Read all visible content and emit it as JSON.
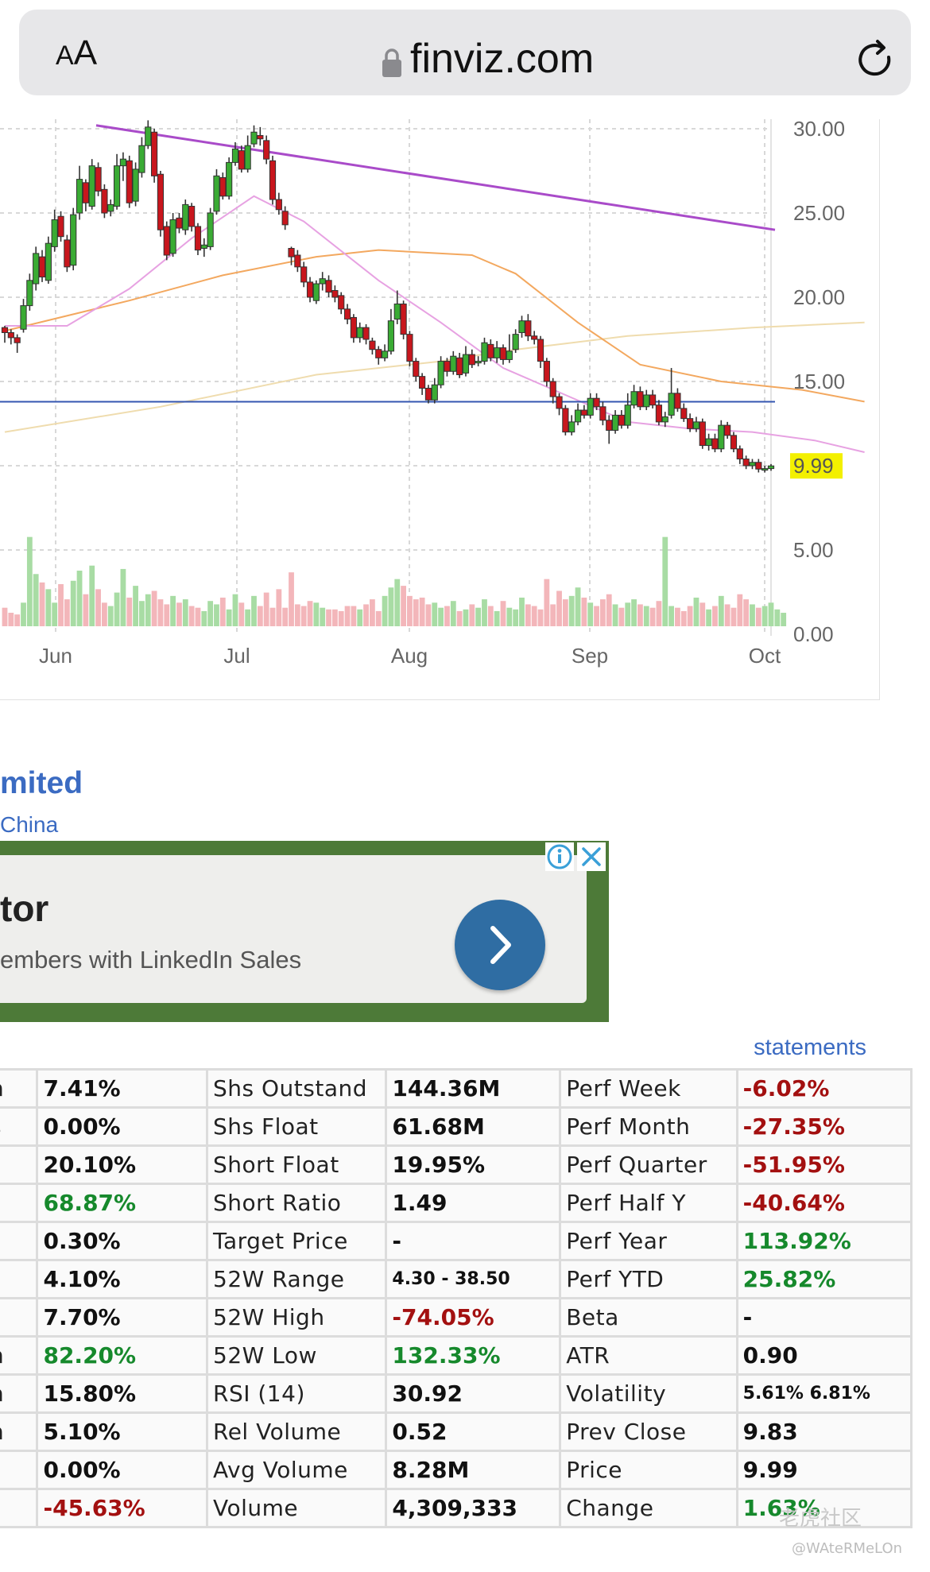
{
  "browser": {
    "text_size_label_small": "A",
    "text_size_label_large": "A",
    "domain": "finviz.com"
  },
  "chart_data": {
    "type": "candlestick",
    "y_ticks": [
      "30.00",
      "25.00",
      "20.00",
      "15.00",
      "5.00",
      "0.00"
    ],
    "x_ticks": [
      "Jun",
      "Jul",
      "Aug",
      "Sep",
      "Oct"
    ],
    "last_price_label": "9.99",
    "ylim": [
      0,
      30
    ],
    "colors": {
      "up": "#3aab34",
      "down": "#c8161d",
      "volume_up": "#a8dca4",
      "volume_down": "#f3b6ba",
      "trend": "#a94bc9",
      "ma20": "#e7a2e2",
      "ma50": "#f3a85f",
      "ma200": "#efdcae",
      "level": "#3456b0",
      "price_label_bg": "#f3f000"
    },
    "trendline": [
      [
        0,
        30.2
      ],
      [
        138,
        24.0
      ]
    ],
    "horizontal_level": 13.8,
    "ma20": [
      [
        0,
        18.3
      ],
      [
        10,
        18.3
      ],
      [
        20,
        20.5
      ],
      [
        30,
        23.5
      ],
      [
        40,
        26.0
      ],
      [
        48,
        24.5
      ],
      [
        60,
        21.0
      ],
      [
        70,
        18.5
      ],
      [
        80,
        15.8
      ],
      [
        90,
        14.2
      ],
      [
        100,
        12.6
      ],
      [
        110,
        12.2
      ],
      [
        120,
        12.0
      ],
      [
        130,
        11.5
      ],
      [
        138,
        10.8
      ]
    ],
    "ma50": [
      [
        0,
        18.0
      ],
      [
        20,
        19.8
      ],
      [
        35,
        21.3
      ],
      [
        50,
        22.4
      ],
      [
        60,
        22.8
      ],
      [
        75,
        22.5
      ],
      [
        82,
        21.4
      ],
      [
        92,
        18.5
      ],
      [
        102,
        16.0
      ],
      [
        115,
        15.0
      ],
      [
        128,
        14.5
      ],
      [
        138,
        13.8
      ]
    ],
    "ma200": [
      [
        0,
        12.0
      ],
      [
        25,
        13.5
      ],
      [
        50,
        15.4
      ],
      [
        70,
        16.2
      ],
      [
        80,
        16.8
      ],
      [
        100,
        17.7
      ],
      [
        120,
        18.2
      ],
      [
        138,
        18.5
      ]
    ],
    "candles": [
      [
        18.2,
        17.9,
        18.3,
        17.3
      ],
      [
        17.9,
        17.6,
        18.1,
        17.2
      ],
      [
        17.6,
        17.3,
        17.8,
        16.7
      ],
      [
        18.1,
        19.5,
        19.9,
        17.9
      ],
      [
        19.5,
        21.0,
        21.4,
        19.2
      ],
      [
        20.8,
        22.6,
        23.0,
        20.4
      ],
      [
        22.4,
        21.2,
        22.8,
        20.9
      ],
      [
        21.0,
        23.2,
        23.6,
        20.8
      ],
      [
        23.0,
        24.6,
        25.2,
        22.7
      ],
      [
        24.8,
        23.6,
        25.1,
        23.3
      ],
      [
        23.4,
        21.8,
        23.7,
        21.5
      ],
      [
        21.9,
        24.9,
        25.3,
        21.6
      ],
      [
        25.0,
        27.0,
        27.8,
        24.6
      ],
      [
        26.8,
        25.6,
        27.0,
        25.1
      ],
      [
        25.4,
        27.8,
        28.2,
        25.2
      ],
      [
        27.7,
        26.3,
        28.0,
        26.0
      ],
      [
        26.4,
        25.0,
        26.7,
        24.7
      ],
      [
        25.1,
        25.5,
        25.8,
        24.8
      ],
      [
        25.4,
        27.8,
        28.5,
        25.2
      ],
      [
        27.8,
        28.2,
        28.6,
        26.9
      ],
      [
        28.1,
        25.6,
        28.4,
        25.3
      ],
      [
        25.7,
        27.6,
        28.0,
        25.4
      ],
      [
        27.4,
        29.0,
        29.5,
        27.1
      ],
      [
        29.0,
        30.1,
        30.5,
        28.8
      ],
      [
        29.8,
        27.2,
        30.0,
        26.8
      ],
      [
        27.3,
        24.0,
        27.5,
        23.6
      ],
      [
        24.2,
        22.5,
        24.5,
        22.2
      ],
      [
        22.6,
        24.6,
        25.0,
        22.4
      ],
      [
        24.7,
        24.1,
        25.0,
        23.8
      ],
      [
        24.0,
        25.5,
        25.8,
        23.7
      ],
      [
        25.4,
        24.2,
        25.6,
        23.9
      ],
      [
        24.2,
        22.8,
        24.4,
        22.5
      ],
      [
        22.9,
        23.1,
        23.5,
        22.4
      ],
      [
        23.0,
        25.0,
        25.3,
        22.8
      ],
      [
        25.1,
        27.2,
        27.6,
        24.9
      ],
      [
        27.1,
        26.0,
        27.4,
        25.8
      ],
      [
        26.0,
        28.0,
        28.3,
        25.8
      ],
      [
        28.0,
        28.8,
        29.2,
        27.8
      ],
      [
        28.7,
        27.6,
        29.0,
        27.4
      ],
      [
        27.6,
        29.0,
        29.6,
        27.4
      ],
      [
        29.1,
        29.8,
        30.2,
        28.9
      ],
      [
        29.6,
        29.4,
        30.1,
        29.0
      ],
      [
        29.3,
        28.2,
        29.6,
        27.9
      ],
      [
        28.1,
        25.8,
        28.4,
        25.5
      ],
      [
        25.8,
        25.2,
        26.2,
        24.9
      ],
      [
        25.1,
        24.3,
        25.4,
        24.0
      ],
      [
        22.9,
        22.4,
        23.0,
        21.9
      ],
      [
        22.5,
        21.8,
        22.8,
        21.5
      ],
      [
        21.8,
        20.9,
        22.1,
        20.6
      ],
      [
        20.9,
        20.0,
        21.2,
        19.7
      ],
      [
        19.8,
        20.8,
        21.0,
        19.6
      ],
      [
        20.8,
        21.1,
        21.5,
        20.4
      ],
      [
        21.0,
        20.3,
        21.3,
        20.0
      ],
      [
        20.4,
        20.0,
        20.7,
        19.7
      ],
      [
        20.1,
        19.3,
        20.3,
        19.0
      ],
      [
        19.3,
        18.7,
        19.6,
        18.4
      ],
      [
        18.8,
        17.6,
        19.0,
        17.3
      ],
      [
        17.6,
        18.2,
        18.5,
        17.3
      ],
      [
        18.2,
        17.5,
        18.4,
        17.2
      ],
      [
        17.4,
        16.9,
        17.6,
        16.6
      ],
      [
        16.9,
        16.4,
        17.1,
        16.0
      ],
      [
        16.4,
        16.8,
        17.2,
        16.2
      ],
      [
        16.8,
        18.6,
        19.3,
        16.6
      ],
      [
        18.7,
        19.6,
        20.4,
        18.4
      ],
      [
        19.6,
        17.8,
        19.8,
        17.5
      ],
      [
        17.8,
        16.2,
        18.0,
        15.9
      ],
      [
        16.2,
        15.3,
        16.4,
        15.0
      ],
      [
        15.3,
        14.6,
        15.5,
        14.2
      ],
      [
        14.6,
        13.9,
        14.8,
        13.7
      ],
      [
        13.9,
        14.8,
        15.2,
        13.7
      ],
      [
        14.8,
        16.2,
        16.5,
        14.6
      ],
      [
        16.2,
        15.6,
        16.4,
        15.3
      ],
      [
        15.6,
        16.5,
        16.8,
        15.4
      ],
      [
        16.4,
        15.4,
        16.7,
        15.2
      ],
      [
        15.5,
        16.6,
        17.1,
        15.3
      ],
      [
        16.6,
        16.0,
        16.9,
        15.8
      ],
      [
        16.1,
        16.2,
        16.5,
        15.9
      ],
      [
        16.2,
        17.3,
        17.6,
        16.0
      ],
      [
        17.2,
        16.4,
        17.5,
        16.2
      ],
      [
        16.4,
        17.0,
        17.4,
        16.1
      ],
      [
        17.0,
        16.3,
        17.2,
        16.0
      ],
      [
        16.3,
        16.8,
        17.8,
        16.1
      ],
      [
        16.9,
        17.8,
        18.1,
        16.7
      ],
      [
        17.9,
        18.6,
        18.9,
        17.6
      ],
      [
        18.6,
        17.7,
        19.0,
        17.4
      ],
      [
        17.7,
        17.5,
        18.0,
        17.2
      ],
      [
        17.5,
        16.2,
        17.7,
        15.8
      ],
      [
        16.2,
        15.0,
        16.4,
        14.7
      ],
      [
        15.0,
        14.1,
        15.2,
        13.7
      ],
      [
        14.1,
        13.4,
        14.3,
        13.0
      ],
      [
        13.4,
        12.0,
        13.6,
        11.8
      ],
      [
        12.0,
        12.6,
        13.0,
        11.8
      ],
      [
        12.6,
        13.3,
        13.7,
        12.4
      ],
      [
        13.3,
        13.0,
        13.6,
        12.8
      ],
      [
        13.0,
        14.0,
        14.3,
        12.8
      ],
      [
        14.0,
        13.5,
        14.3,
        13.3
      ],
      [
        13.5,
        12.7,
        13.8,
        12.4
      ],
      [
        12.7,
        12.1,
        13.0,
        11.3
      ],
      [
        12.1,
        13.0,
        13.3,
        11.9
      ],
      [
        13.0,
        12.4,
        13.3,
        12.2
      ],
      [
        12.4,
        13.6,
        14.3,
        12.2
      ],
      [
        13.6,
        14.4,
        14.8,
        13.4
      ],
      [
        14.4,
        13.5,
        14.7,
        13.3
      ],
      [
        13.5,
        14.2,
        14.5,
        13.3
      ],
      [
        14.2,
        13.6,
        14.5,
        13.4
      ],
      [
        13.6,
        12.6,
        13.9,
        12.4
      ],
      [
        12.6,
        12.9,
        13.2,
        12.3
      ],
      [
        13.0,
        14.3,
        15.8,
        12.8
      ],
      [
        14.3,
        13.4,
        14.6,
        13.2
      ],
      [
        13.4,
        12.8,
        13.7,
        12.6
      ],
      [
        12.8,
        12.2,
        13.1,
        12.0
      ],
      [
        12.2,
        12.6,
        12.9,
        12.0
      ],
      [
        12.6,
        11.2,
        12.8,
        11.0
      ],
      [
        11.2,
        11.6,
        11.9,
        10.9
      ],
      [
        11.6,
        11.0,
        11.9,
        10.8
      ],
      [
        11.0,
        12.4,
        12.7,
        10.8
      ],
      [
        12.4,
        11.8,
        12.6,
        11.6
      ],
      [
        11.8,
        11.0,
        12.0,
        10.8
      ],
      [
        11.0,
        10.4,
        11.2,
        10.1
      ],
      [
        10.4,
        10.0,
        10.6,
        9.8
      ],
      [
        10.0,
        10.2,
        10.4,
        9.8
      ],
      [
        10.2,
        9.8,
        10.4,
        9.6
      ],
      [
        9.8,
        9.83,
        10.0,
        9.6
      ],
      [
        9.83,
        9.99,
        10.1,
        9.7
      ]
    ],
    "volume": [
      1.1,
      0.8,
      0.7,
      1.4,
      5.3,
      3.1,
      2.6,
      2.2,
      1.4,
      2.5,
      1.6,
      2.7,
      3.3,
      1.9,
      3.6,
      2.2,
      1.4,
      1.2,
      2.0,
      3.4,
      1.7,
      2.4,
      1.5,
      1.9,
      2.1,
      1.6,
      1.3,
      1.8,
      1.4,
      1.6,
      1.2,
      1.1,
      0.9,
      1.5,
      1.3,
      1.7,
      1.0,
      1.9,
      1.4,
      1.0,
      1.8,
      1.2,
      2.0,
      1.1,
      2.2,
      1.1,
      3.2,
      1.3,
      1.2,
      1.5,
      1.4,
      1.1,
      1.0,
      1.0,
      0.9,
      1.2,
      1.2,
      1.0,
      1.3,
      1.6,
      0.9,
      1.8,
      2.3,
      2.8,
      2.4,
      1.8,
      1.6,
      1.7,
      1.3,
      1.4,
      1.1,
      1.2,
      1.5,
      0.9,
      1.0,
      1.3,
      1.1,
      1.6,
      1.2,
      0.9,
      1.5,
      1.1,
      1.0,
      1.7,
      1.3,
      1.2,
      1.0,
      2.8,
      1.3,
      2.1,
      1.6,
      1.8,
      2.3,
      1.7,
      1.4,
      1.2,
      1.6,
      1.9,
      1.3,
      1.1,
      1.4,
      1.6,
      1.3,
      1.2,
      1.1,
      1.5,
      5.3,
      1.2,
      1.1,
      0.9,
      1.2,
      1.7,
      1.4,
      1.0,
      1.2,
      1.8,
      1.3,
      1.1,
      1.9,
      1.6,
      1.3,
      1.1,
      1.2,
      1.4,
      1.0,
      0.8
    ]
  },
  "company": {
    "name_fragment": "mited",
    "country_fragment": "China"
  },
  "ad": {
    "title_fragment": "tor",
    "text_fragment": "embers with LinkedIn Sales"
  },
  "links": {
    "statements": "statements"
  },
  "snapshot": [
    [
      "n",
      "7.41%",
      "",
      "Shs Outstand",
      "144.36M",
      "",
      "Perf Week",
      "-6.02%",
      "red"
    ],
    [
      "s",
      "0.00%",
      "",
      "Shs Float",
      "61.68M",
      "",
      "Perf Month",
      "-27.35%",
      "red"
    ],
    [
      "",
      "20.10%",
      "",
      "Short Float",
      "19.95%",
      "",
      "Perf Quarter",
      "-51.95%",
      "red"
    ],
    [
      "",
      "68.87%",
      "green",
      "Short Ratio",
      "1.49",
      "",
      "Perf Half Y",
      "-40.64%",
      "red"
    ],
    [
      "",
      "0.30%",
      "",
      "Target Price",
      "-",
      "",
      "Perf Year",
      "113.92%",
      "green"
    ],
    [
      "",
      "4.10%",
      "",
      "52W Range",
      "4.30 - 38.50",
      "sm",
      "Perf YTD",
      "25.82%",
      "green"
    ],
    [
      "",
      "7.70%",
      "",
      "52W High",
      "-74.05%",
      "red",
      "Beta",
      "-",
      ""
    ],
    [
      "n",
      "82.20%",
      "green",
      "52W Low",
      "132.33%",
      "green",
      "ATR",
      "0.90",
      ""
    ],
    [
      "n",
      "15.80%",
      "",
      "RSI (14)",
      "30.92",
      "",
      "Volatility",
      "5.61% 6.81%",
      "sm"
    ],
    [
      "n",
      "5.10%",
      "",
      "Rel Volume",
      "0.52",
      "",
      "Prev Close",
      "9.83",
      ""
    ],
    [
      "",
      "0.00%",
      "",
      "Avg Volume",
      "8.28M",
      "",
      "Price",
      "9.99",
      ""
    ],
    [
      "",
      "-45.63%",
      "red",
      "Volume",
      "4,309,333",
      "",
      "Change",
      "1.63%",
      "green"
    ]
  ],
  "watermark": {
    "text": "老虎社区",
    "handle": "@WAteRMeLOn"
  }
}
